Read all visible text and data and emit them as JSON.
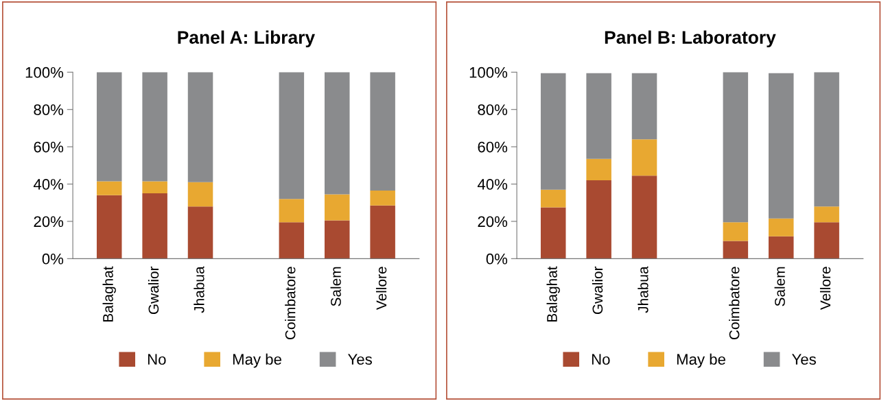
{
  "chart_data": [
    {
      "type": "bar",
      "stacked": true,
      "title": "Panel A: Library",
      "categories": [
        "Balaghat",
        "Gwalior",
        "Jhabua",
        null,
        "Coimbatore",
        "Salem",
        "Vellore"
      ],
      "series": [
        {
          "name": "No",
          "color": "#a94a31",
          "values": [
            34,
            35,
            28,
            null,
            19.5,
            20.5,
            28.5
          ]
        },
        {
          "name": "May be",
          "color": "#e8a831",
          "values": [
            7.5,
            6.5,
            13,
            null,
            12.5,
            14,
            8
          ]
        },
        {
          "name": "Yes",
          "color": "#8a8b8d",
          "values": [
            58.5,
            58.5,
            59,
            null,
            68,
            65.5,
            63.5
          ]
        }
      ],
      "ylim": [
        0,
        100
      ],
      "yticks": [
        {
          "value": 0,
          "label": "0%"
        },
        {
          "value": 20,
          "label": "20%"
        },
        {
          "value": 40,
          "label": "40%"
        },
        {
          "value": 60,
          "label": "60%"
        },
        {
          "value": 80,
          "label": "80%"
        },
        {
          "value": 100,
          "label": "100%"
        }
      ],
      "grid": false,
      "legend": "bottom"
    },
    {
      "type": "bar",
      "stacked": true,
      "title": "Panel B: Laboratory",
      "categories": [
        "Balaghat",
        "Gwalior",
        "Jhabua",
        null,
        "Coimbatore",
        "Salem",
        "Vellore"
      ],
      "series": [
        {
          "name": "No",
          "color": "#a94a31",
          "values": [
            27.5,
            42,
            44.5,
            null,
            9.5,
            12,
            19.5
          ]
        },
        {
          "name": "May be",
          "color": "#e8a831",
          "values": [
            9.5,
            11.5,
            19.5,
            null,
            10,
            9.5,
            8.5
          ]
        },
        {
          "name": "Yes",
          "color": "#8a8b8d",
          "values": [
            62.5,
            46,
            35.5,
            null,
            80.5,
            78,
            72
          ]
        }
      ],
      "ylim": [
        0,
        100
      ],
      "yticks": [
        {
          "value": 0,
          "label": "0%"
        },
        {
          "value": 20,
          "label": "20%"
        },
        {
          "value": 40,
          "label": "40%"
        },
        {
          "value": 60,
          "label": "60%"
        },
        {
          "value": 80,
          "label": "80%"
        },
        {
          "value": 100,
          "label": "100%"
        }
      ],
      "grid": false,
      "legend": "bottom"
    }
  ]
}
